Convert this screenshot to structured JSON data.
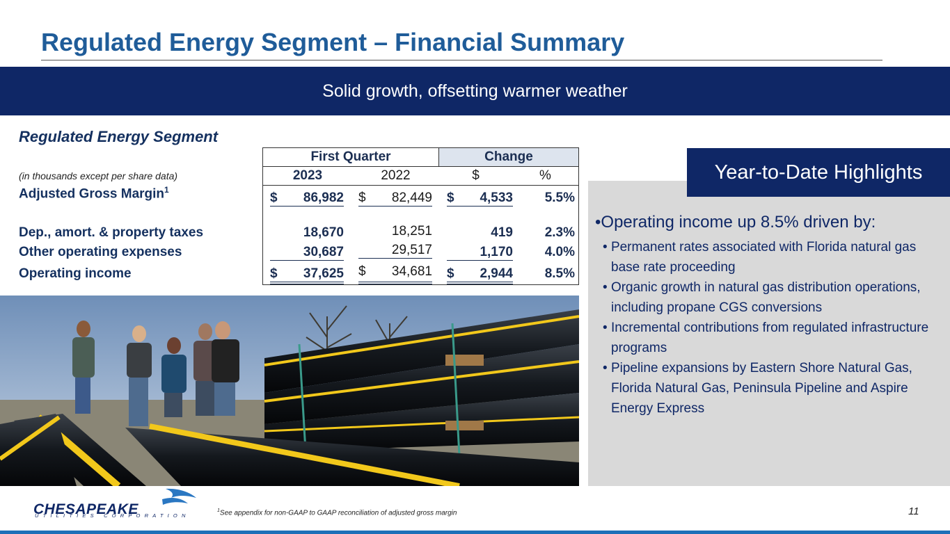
{
  "header": {
    "title": "Regulated Energy Segment – Financial Summary",
    "banner": "Solid growth, offsetting warmer weather"
  },
  "segment": {
    "title": "Regulated Energy Segment",
    "subtitle": "(in thousands except per share data)"
  },
  "table": {
    "group_headers": [
      "First Quarter",
      "Change"
    ],
    "column_headers": [
      "2023",
      "2022",
      "$",
      "%"
    ],
    "rows": [
      {
        "label": "Adjusted Gross Margin",
        "footnote_mark": "1",
        "cur_sym": "$",
        "y2023": "86,982",
        "y2022_sym": "$",
        "y2022": "82,449",
        "chg_sym": "$",
        "chg": "4,533",
        "pct": "5.5%"
      },
      {
        "label": "Dep., amort. & property taxes",
        "footnote_mark": "",
        "cur_sym": "",
        "y2023": "18,670",
        "y2022_sym": "",
        "y2022": "18,251",
        "chg_sym": "",
        "chg": "419",
        "pct": "2.3%"
      },
      {
        "label": "Other operating expenses",
        "footnote_mark": "",
        "cur_sym": "",
        "y2023": "30,687",
        "y2022_sym": "",
        "y2022": "29,517",
        "chg_sym": "",
        "chg": "1,170",
        "pct": "4.0%"
      },
      {
        "label": "Operating income",
        "footnote_mark": "",
        "cur_sym": "$",
        "y2023": "37,625",
        "y2022_sym": "$",
        "y2022": "34,681",
        "chg_sym": "$",
        "chg": "2,944",
        "pct": "8.5%"
      }
    ]
  },
  "highlights": {
    "title": "Year-to-Date Highlights",
    "main_pre": "Operating income up ",
    "main_value": "8.5%",
    "main_post": " driven by:",
    "items": [
      "Permanent rates associated with Florida natural gas base rate proceeding",
      "Organic growth in natural gas distribution operations, including propane CGS conversions",
      "Incremental contributions from regulated infrastructure programs",
      "Pipeline expansions by Eastern Shore Natural Gas, Florida Natural Gas, Peninsula Pipeline and Aspire Energy Express"
    ]
  },
  "footer": {
    "logo_text": "CHESAPEAKE",
    "logo_subtext": "UTILITIES CORPORATION",
    "footnote_mark": "1",
    "footnote": "See appendix for non-GAAP to GAAP reconciliation of adjusted gross margin",
    "page": "11"
  },
  "colors": {
    "navy": "#0f2766",
    "title_blue": "#1f5c99",
    "panel_gray": "#d9d9d9",
    "pipe_yellow": "#f2c81b"
  }
}
